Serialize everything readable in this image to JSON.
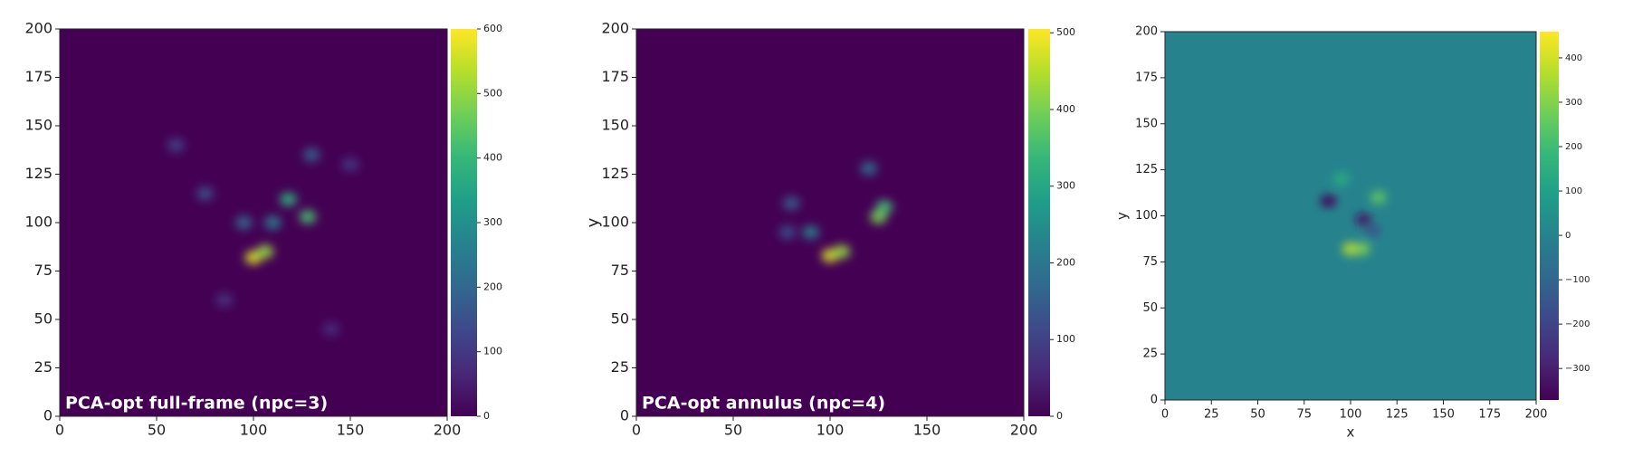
{
  "chart_data": [
    {
      "type": "heatmap",
      "cmap": "viridis",
      "annotation": "PCA-opt full-frame (npc=3)",
      "xlim": [
        0,
        200
      ],
      "ylim": [
        0,
        200
      ],
      "xticks": [
        0,
        50,
        100,
        150,
        200
      ],
      "yticks": [
        0,
        25,
        50,
        75,
        100,
        125,
        150,
        175,
        200
      ],
      "clim": [
        0,
        600
      ],
      "cticks": [
        0,
        100,
        200,
        300,
        400,
        500,
        600
      ],
      "background_value": 0,
      "blobs": {
        "x": [
          100,
          106,
          128,
          118,
          110,
          95,
          75,
          130,
          60,
          150,
          85,
          140
        ],
        "y": [
          82,
          85,
          103,
          112,
          100,
          100,
          115,
          135,
          140,
          130,
          60,
          45
        ],
        "values": [
          560,
          500,
          420,
          380,
          250,
          200,
          150,
          180,
          120,
          100,
          90,
          80
        ]
      }
    },
    {
      "type": "heatmap",
      "cmap": "viridis",
      "annotation": "PCA-opt annulus (npc=4)",
      "ylabel": "y",
      "xlim": [
        0,
        200
      ],
      "ylim": [
        0,
        200
      ],
      "xticks": [
        0,
        50,
        100,
        150,
        200
      ],
      "yticks": [
        0,
        25,
        50,
        75,
        100,
        125,
        150,
        175,
        200
      ],
      "clim": [
        0,
        505
      ],
      "cticks": [
        0,
        100,
        200,
        300,
        400,
        500
      ],
      "background_value": 0,
      "blobs": {
        "x": [
          100,
          106,
          125,
          128,
          90,
          80,
          120,
          78
        ],
        "y": [
          83,
          85,
          103,
          108,
          95,
          110,
          128,
          95
        ],
        "values": [
          470,
          420,
          400,
          350,
          220,
          150,
          180,
          120
        ]
      }
    },
    {
      "type": "heatmap",
      "cmap": "viridis",
      "xlabel": "x",
      "ylabel": "y",
      "xlim": [
        0,
        200
      ],
      "ylim": [
        0,
        200
      ],
      "xticks": [
        0,
        25,
        50,
        75,
        100,
        125,
        150,
        175,
        200
      ],
      "yticks": [
        0,
        25,
        50,
        75,
        100,
        125,
        150,
        175,
        200
      ],
      "clim": [
        -371,
        459
      ],
      "cticks": [
        {
          "value": -300,
          "label": "−300"
        },
        {
          "value": -200,
          "label": "−200"
        },
        {
          "value": -100,
          "label": "−100"
        },
        0,
        100,
        200,
        300,
        400
      ],
      "background_value": 0,
      "blobs": {
        "x": [
          100,
          106,
          88,
          107,
          115,
          95,
          112
        ],
        "y": [
          82,
          82,
          108,
          98,
          110,
          120,
          92
        ],
        "values": [
          380,
          300,
          -360,
          -330,
          250,
          150,
          -150
        ]
      }
    }
  ]
}
